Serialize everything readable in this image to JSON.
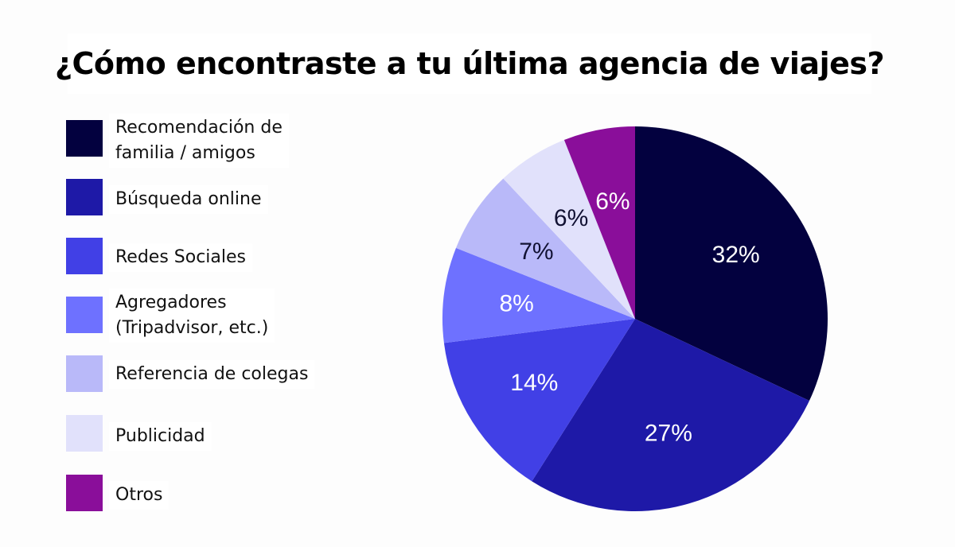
{
  "chart_data": {
    "type": "pie",
    "title": "¿Cómo encontraste a tu última agencia de viajes?",
    "slices": [
      {
        "label": "Recomendación de\nfamilia / amigos",
        "value": 32,
        "display": "32%",
        "color": "#03013f",
        "text_color": "#ffffff"
      },
      {
        "label": "Búsqueda online",
        "value": 27,
        "display": "27%",
        "color": "#1e19a7",
        "text_color": "#ffffff"
      },
      {
        "label": "Redes Sociales",
        "value": 14,
        "display": "14%",
        "color": "#4140e6",
        "text_color": "#ffffff"
      },
      {
        "label": "Agregadores\n(Tripadvisor, etc.)",
        "value": 8,
        "display": "8%",
        "color": "#6e71ff",
        "text_color": "#ffffff"
      },
      {
        "label": "Referencia de colegas",
        "value": 7,
        "display": "7%",
        "color": "#b9b9f9",
        "text_color": "#111133"
      },
      {
        "label": "Publicidad",
        "value": 6,
        "display": "6%",
        "color": "#e1e1fb",
        "text_color": "#111133"
      },
      {
        "label": "Otros",
        "value": 6,
        "display": "6%",
        "color": "#8a0e9a",
        "text_color": "#ffffff"
      }
    ],
    "legend_position": "left",
    "start_angle": "12 o'clock",
    "direction": "clockwise"
  }
}
